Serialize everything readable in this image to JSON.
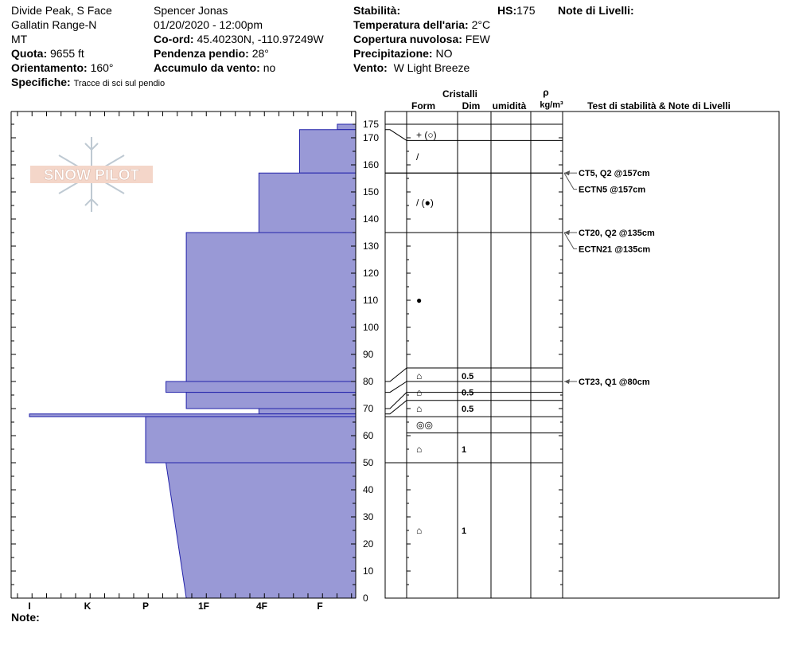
{
  "header": {
    "location": "Divide Peak, S Face",
    "range": "Gallatin Range-N",
    "state": "MT",
    "elevation_label": "Quota:",
    "elevation": "9655 ft",
    "aspect_label": "Orientamento:",
    "aspect": "160°",
    "specifics_label": "Specifiche:",
    "specifics": "Tracce di sci sul pendio",
    "observer": "Spencer Jonas",
    "datetime": "01/20/2020 - 12:00pm",
    "coord_label": "Co-ord:",
    "coord": "45.40230N, -110.97249W",
    "slope_label": "Pendenza pendio:",
    "slope": "28°",
    "wind_loading_label": "Accumulo da vento:",
    "wind_loading": "no",
    "stability_label": "Stabilità:",
    "air_temp_label": "Temperatura dell'aria:",
    "air_temp": "2°C",
    "cloud_label": "Copertura nuvolosa:",
    "cloud": "FEW",
    "precip_label": "Precipitazione:",
    "precip": "NO",
    "wind_label": "Vento:",
    "wind": "W Light Breeze",
    "hs_label": "HS:",
    "hs": "175",
    "layer_notes_label": "Note di Livelli:",
    "notes_label": "Note:"
  },
  "logo_text": "SNOW PILOT",
  "table_headers": {
    "crystals": "Cristalli",
    "form": "Form",
    "size": "Dim",
    "wetness": "umidità",
    "rho": "ρ",
    "density_unit": "kg/m³",
    "tests": "Test di stabilità & Note di Livelli"
  },
  "colors": {
    "hardness_fill": "#9999d6",
    "hardness_stroke": "#2222aa"
  },
  "chart_data": {
    "type": "area",
    "ylim": [
      0,
      175
    ],
    "y_ticks": [
      0,
      10,
      20,
      30,
      40,
      50,
      60,
      70,
      80,
      90,
      100,
      110,
      120,
      130,
      140,
      150,
      160,
      170,
      175
    ],
    "hardness_scale": [
      "I",
      "K",
      "P",
      "1F",
      "4F",
      "F"
    ],
    "hardness_layers": [
      {
        "top": 175,
        "bottom": 173,
        "hardness": 5.3
      },
      {
        "top": 173,
        "bottom": 157,
        "hardness": 4.65
      },
      {
        "top": 157,
        "bottom": 135,
        "hardness": 3.95
      },
      {
        "top": 135,
        "bottom": 80,
        "hardness": 2.7
      },
      {
        "top": 80,
        "bottom": 76,
        "hardness": 2.35
      },
      {
        "top": 76,
        "bottom": 70,
        "hardness": 2.7
      },
      {
        "top": 70,
        "bottom": 68,
        "hardness": 3.95
      },
      {
        "top": 68,
        "bottom": 67,
        "hardness": 0.0
      },
      {
        "top": 67,
        "bottom": 50,
        "hardness": 2.0
      },
      {
        "top": 50,
        "bottom": 0,
        "hardness_top": 2.35,
        "hardness_bottom": 2.7
      }
    ],
    "layer_boundaries": [
      175,
      169,
      157,
      135,
      85,
      80,
      76,
      73,
      67,
      61,
      50
    ],
    "crystal_rows": [
      {
        "y": 171,
        "form": "+ (○)",
        "size": ""
      },
      {
        "y": 163,
        "form": "/",
        "size": ""
      },
      {
        "y": 146,
        "form": "/ (●)",
        "size": ""
      },
      {
        "y": 110,
        "form": "●",
        "size": ""
      },
      {
        "y": 82,
        "form": "⌂",
        "size": "0.5"
      },
      {
        "y": 76,
        "form": "⌂",
        "size": "0.5"
      },
      {
        "y": 70,
        "form": "⌂",
        "size": "0.5"
      },
      {
        "y": 64,
        "form": "◎◎",
        "size": ""
      },
      {
        "y": 55,
        "form": "⌂",
        "size": "1"
      },
      {
        "y": 25,
        "form": "⌂",
        "size": "1"
      }
    ],
    "tests": [
      {
        "depth": 157,
        "label": "CT5, Q2 @157cm",
        "row": 157
      },
      {
        "depth": 157,
        "label": "ECTN5 @157cm",
        "row": 151
      },
      {
        "depth": 135,
        "label": "CT20, Q2 @135cm",
        "row": 135
      },
      {
        "depth": 135,
        "label": "ECTN21 @135cm",
        "row": 129
      },
      {
        "depth": 80,
        "label": "CT23, Q1 @80cm",
        "row": 80
      }
    ]
  }
}
